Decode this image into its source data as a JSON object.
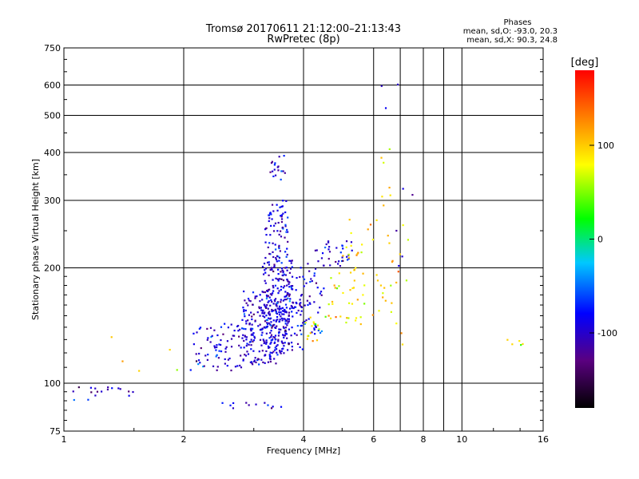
{
  "chart_data": {
    "type": "scatter",
    "title": "Tromsø 20170611 21:12:00–21:13:43",
    "subtitle": "RwPretec (8p)",
    "xlabel": "Frequency [MHz]",
    "ylabel": "Stationary phase Virtual Height [km]",
    "x_scale": "log",
    "y_scale": "log",
    "xlim": [
      1,
      16
    ],
    "ylim": [
      75,
      750
    ],
    "x_ticks": [
      1,
      2,
      4,
      6,
      8,
      10,
      16
    ],
    "y_ticks": [
      75,
      100,
      200,
      300,
      400,
      500,
      600,
      750
    ],
    "grid": true,
    "stats": {
      "heading": "Phases",
      "line_o": "mean, sd,O: -93.0, 20.3",
      "line_x": "mean, sd,X:  90.3, 24.8"
    },
    "colorbar": {
      "label": "[deg]",
      "range": [
        -180,
        180
      ],
      "ticks": [
        100,
        0,
        -100
      ],
      "colors": [
        "#000000",
        "#5a0080",
        "#0000ff",
        "#00c8ff",
        "#00ff00",
        "#ffff00",
        "#ff8000",
        "#ff0000"
      ]
    },
    "series": [
      {
        "name": "O",
        "phase_mean": -93.0,
        "phase_sd": 20.3,
        "clusters": [
          {
            "x": [
              1.05,
              1.5
            ],
            "y": [
              90,
              98
            ],
            "n": 18
          },
          {
            "x": [
              2.05,
              2.6
            ],
            "y": [
              108,
              140
            ],
            "n": 45
          },
          {
            "x": [
              2.45,
              3.0
            ],
            "y": [
              108,
              145
            ],
            "n": 55
          },
          {
            "x": [
              2.8,
              3.5
            ],
            "y": [
              112,
              175
            ],
            "n": 150
          },
          {
            "x": [
              3.15,
              3.75
            ],
            "y": [
              118,
              210
            ],
            "n": 220
          },
          {
            "x": [
              3.2,
              3.65
            ],
            "y": [
              185,
              300
            ],
            "n": 90
          },
          {
            "x": [
              3.3,
              3.6
            ],
            "y": [
              330,
              400
            ],
            "n": 18
          },
          {
            "x": [
              3.6,
              4.0
            ],
            "y": [
              120,
              190
            ],
            "n": 60
          },
          {
            "x": [
              3.9,
              4.5
            ],
            "y": [
              130,
              225
            ],
            "n": 50
          },
          {
            "x": [
              4.4,
              5.3
            ],
            "y": [
              200,
              235
            ],
            "n": 30
          },
          {
            "x": [
              2.5,
              3.6
            ],
            "y": [
              86,
              89
            ],
            "n": 12
          },
          {
            "x": [
              6.2,
              7.6
            ],
            "y": [
              200,
              680
            ],
            "n": 8
          }
        ]
      },
      {
        "name": "X",
        "phase_mean": 90.3,
        "phase_sd": 24.8,
        "clusters": [
          {
            "x": [
              4.0,
              4.5
            ],
            "y": [
              128,
              150
            ],
            "n": 14
          },
          {
            "x": [
              4.5,
              5.5
            ],
            "y": [
              145,
              200
            ],
            "n": 25
          },
          {
            "x": [
              5.0,
              6.0
            ],
            "y": [
              140,
              270
            ],
            "n": 28
          },
          {
            "x": [
              6.1,
              6.8
            ],
            "y": [
              150,
              410
            ],
            "n": 20
          },
          {
            "x": [
              6.6,
              7.4
            ],
            "y": [
              120,
              270
            ],
            "n": 12
          },
          {
            "x": [
              13.0,
              14.5
            ],
            "y": [
              115,
              135
            ],
            "n": 5
          },
          {
            "x": [
              1.3,
              2.1
            ],
            "y": [
              105,
              135
            ],
            "n": 5
          }
        ]
      }
    ]
  }
}
